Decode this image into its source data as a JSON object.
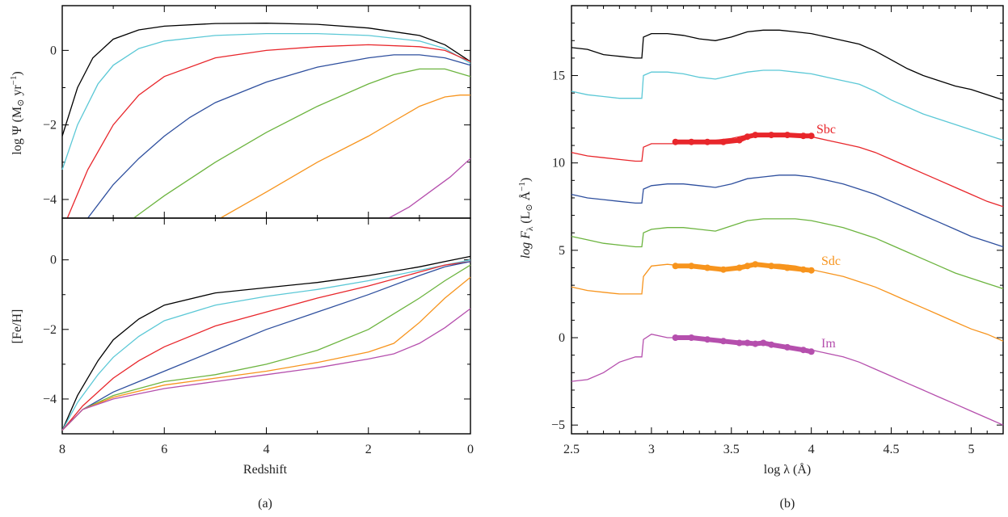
{
  "panel_a": {
    "caption": "(a)",
    "top_ylabel_prefix": "log Ψ (M",
    "top_ylabel_suffix": " yr",
    "top_ylabel_sup": "−1",
    "top_ylabel_close": ")",
    "bottom_ylabel": "[Fe/H]",
    "xlabel": "Redshift",
    "x_ticks": [
      8,
      6,
      4,
      2,
      0
    ],
    "top_y_ticks": [
      0,
      -2,
      -4
    ],
    "bottom_y_ticks": [
      0,
      -2,
      -4
    ]
  },
  "panel_b": {
    "caption": "(b)",
    "ylabel_main": "log F",
    "ylabel_sub": "λ",
    "ylabel_unit_open": " (L",
    "ylabel_unit_mid": " Å",
    "ylabel_unit_sup": "−1",
    "ylabel_unit_close": ")",
    "xlabel": "log λ (Å)",
    "x_ticks": [
      "2.5",
      "3",
      "3.5",
      "4",
      "4.5",
      "5"
    ],
    "y_ticks": [
      "15",
      "10",
      "5",
      "0",
      "−5"
    ],
    "labels": [
      {
        "text": "Sbc",
        "color": "#e8262b"
      },
      {
        "text": "Sdc",
        "color": "#f7941d"
      },
      {
        "text": "Im",
        "color": "#b54fad"
      }
    ]
  },
  "colors": [
    "#000000",
    "#5bc8d6",
    "#e8262b",
    "#2e4f9e",
    "#6cb43f",
    "#f7941d",
    "#b54fad"
  ],
  "chart_data": [
    {
      "type": "line",
      "panel": "a-top",
      "xlabel": "Redshift",
      "ylabel": "log Ψ (M⊙ yr−1)",
      "xlim": [
        8,
        0
      ],
      "ylim": [
        -4.5,
        1.2
      ],
      "series": [
        {
          "x": [
            8.0,
            7.7,
            7.4,
            7.0,
            6.5,
            6.0,
            5.0,
            4.0,
            3.0,
            2.0,
            1.0,
            0.5,
            0.0
          ],
          "y": [
            -2.3,
            -1.0,
            -0.2,
            0.3,
            0.55,
            0.65,
            0.72,
            0.73,
            0.7,
            0.6,
            0.4,
            0.15,
            -0.3
          ]
        },
        {
          "x": [
            8.0,
            7.7,
            7.3,
            7.0,
            6.5,
            6.0,
            5.0,
            4.0,
            3.0,
            2.0,
            1.0,
            0.5,
            0.0
          ],
          "y": [
            -3.2,
            -2.0,
            -0.9,
            -0.4,
            0.05,
            0.25,
            0.4,
            0.45,
            0.45,
            0.4,
            0.25,
            0.05,
            -0.35
          ]
        },
        {
          "x": [
            7.9,
            7.5,
            7.0,
            6.5,
            6.0,
            5.0,
            4.0,
            3.0,
            2.0,
            1.0,
            0.5,
            0.0
          ],
          "y": [
            -4.5,
            -3.2,
            -2.0,
            -1.2,
            -0.7,
            -0.2,
            0.0,
            0.1,
            0.15,
            0.1,
            0.0,
            -0.3
          ]
        },
        {
          "x": [
            7.5,
            7.0,
            6.5,
            6.0,
            5.5,
            5.0,
            4.0,
            3.0,
            2.0,
            1.5,
            1.0,
            0.5,
            0.0
          ],
          "y": [
            -4.5,
            -3.6,
            -2.9,
            -2.3,
            -1.8,
            -1.4,
            -0.85,
            -0.45,
            -0.2,
            -0.12,
            -0.12,
            -0.2,
            -0.4
          ]
        },
        {
          "x": [
            6.6,
            6.0,
            5.0,
            4.0,
            3.0,
            2.0,
            1.5,
            1.0,
            0.5,
            0.0
          ],
          "y": [
            -4.5,
            -3.9,
            -3.0,
            -2.2,
            -1.5,
            -0.9,
            -0.65,
            -0.5,
            -0.5,
            -0.7
          ]
        },
        {
          "x": [
            4.9,
            4.0,
            3.0,
            2.0,
            1.5,
            1.0,
            0.5,
            0.2,
            0.0
          ],
          "y": [
            -4.5,
            -3.8,
            -3.0,
            -2.3,
            -1.9,
            -1.5,
            -1.25,
            -1.2,
            -1.2
          ]
        },
        {
          "x": [
            1.6,
            1.2,
            0.8,
            0.4,
            0.0
          ],
          "y": [
            -4.5,
            -4.2,
            -3.8,
            -3.4,
            -2.9
          ]
        }
      ]
    },
    {
      "type": "line",
      "panel": "a-bottom",
      "xlabel": "Redshift",
      "ylabel": "[Fe/H]",
      "xlim": [
        8,
        0
      ],
      "ylim": [
        -5.0,
        1.2
      ],
      "series": [
        {
          "x": [
            8.0,
            7.7,
            7.3,
            7.0,
            6.5,
            6.0,
            5.0,
            4.0,
            3.0,
            2.0,
            1.0,
            0.5,
            0.0
          ],
          "y": [
            -4.9,
            -3.9,
            -2.9,
            -2.3,
            -1.7,
            -1.3,
            -0.95,
            -0.8,
            -0.65,
            -0.45,
            -0.2,
            -0.05,
            0.1
          ]
        },
        {
          "x": [
            8.0,
            7.7,
            7.3,
            7.0,
            6.5,
            6.0,
            5.0,
            4.0,
            3.0,
            2.0,
            1.0,
            0.5,
            0.0
          ],
          "y": [
            -4.9,
            -4.1,
            -3.3,
            -2.8,
            -2.2,
            -1.75,
            -1.3,
            -1.05,
            -0.85,
            -0.6,
            -0.3,
            -0.15,
            0.0
          ]
        },
        {
          "x": [
            8.0,
            7.6,
            7.0,
            6.5,
            6.0,
            5.0,
            4.0,
            3.0,
            2.0,
            1.0,
            0.5,
            0.0
          ],
          "y": [
            -4.9,
            -4.2,
            -3.4,
            -2.9,
            -2.5,
            -1.9,
            -1.5,
            -1.1,
            -0.75,
            -0.35,
            -0.15,
            -0.05
          ]
        },
        {
          "x": [
            8.0,
            7.6,
            7.0,
            6.5,
            6.0,
            5.0,
            4.0,
            3.0,
            2.0,
            1.0,
            0.5,
            0.0
          ],
          "y": [
            -4.9,
            -4.3,
            -3.8,
            -3.5,
            -3.2,
            -2.6,
            -2.0,
            -1.5,
            -1.0,
            -0.45,
            -0.2,
            -0.05
          ]
        },
        {
          "x": [
            8.0,
            7.6,
            7.0,
            6.0,
            5.0,
            4.0,
            3.0,
            2.0,
            1.0,
            0.5,
            0.0
          ],
          "y": [
            -4.9,
            -4.3,
            -3.9,
            -3.5,
            -3.3,
            -3.0,
            -2.6,
            -2.0,
            -1.1,
            -0.6,
            -0.15
          ]
        },
        {
          "x": [
            8.0,
            7.6,
            7.0,
            6.0,
            5.0,
            4.0,
            3.0,
            2.0,
            1.5,
            1.0,
            0.5,
            0.0
          ],
          "y": [
            -4.9,
            -4.3,
            -3.95,
            -3.6,
            -3.4,
            -3.2,
            -2.95,
            -2.65,
            -2.4,
            -1.8,
            -1.1,
            -0.5
          ]
        },
        {
          "x": [
            8.0,
            7.6,
            7.0,
            6.0,
            5.0,
            4.0,
            3.0,
            2.0,
            1.5,
            1.0,
            0.5,
            0.0
          ],
          "y": [
            -4.9,
            -4.3,
            -4.0,
            -3.7,
            -3.5,
            -3.3,
            -3.1,
            -2.85,
            -2.7,
            -2.4,
            -1.95,
            -1.4
          ]
        }
      ]
    },
    {
      "type": "line",
      "panel": "b",
      "xlabel": "log λ (Å)",
      "ylabel": "log Fλ (L⊙ Å−1)",
      "xlim": [
        2.5,
        5.2
      ],
      "ylim": [
        -5.5,
        19.0
      ],
      "template_x": [
        2.5,
        2.6,
        2.7,
        2.8,
        2.9,
        2.94,
        2.95,
        3.0,
        3.1,
        3.2,
        3.3,
        3.4,
        3.5,
        3.6,
        3.7,
        3.8,
        3.9,
        4.0,
        4.1,
        4.2,
        4.3,
        4.4,
        4.5,
        4.6,
        4.7,
        4.8,
        4.9,
        5.0,
        5.1,
        5.2
      ],
      "series": [
        {
          "offset": 16.5,
          "y": [
            0.1,
            0.0,
            -0.3,
            -0.4,
            -0.5,
            -0.5,
            0.7,
            0.9,
            0.9,
            0.8,
            0.6,
            0.5,
            0.7,
            1.0,
            1.1,
            1.1,
            1.0,
            0.9,
            0.7,
            0.5,
            0.3,
            -0.1,
            -0.6,
            -1.1,
            -1.5,
            -1.8,
            -2.1,
            -2.3,
            -2.6,
            -2.9
          ]
        },
        {
          "offset": 14.5,
          "y": [
            -0.4,
            -0.6,
            -0.7,
            -0.8,
            -0.8,
            -0.8,
            0.5,
            0.7,
            0.7,
            0.6,
            0.4,
            0.3,
            0.5,
            0.7,
            0.8,
            0.8,
            0.7,
            0.6,
            0.4,
            0.2,
            0.0,
            -0.4,
            -0.9,
            -1.3,
            -1.7,
            -2.0,
            -2.3,
            -2.6,
            -2.9,
            -3.2
          ]
        },
        {
          "offset": 10.5,
          "y": [
            0.1,
            -0.1,
            -0.2,
            -0.3,
            -0.4,
            -0.4,
            0.4,
            0.6,
            0.6,
            0.6,
            0.7,
            0.8,
            0.9,
            1.1,
            1.1,
            1.1,
            1.1,
            1.0,
            0.8,
            0.6,
            0.4,
            0.1,
            -0.3,
            -0.7,
            -1.1,
            -1.5,
            -1.9,
            -2.3,
            -2.7,
            -3.0
          ]
        },
        {
          "offset": 8.2,
          "y": [
            0.0,
            -0.2,
            -0.3,
            -0.4,
            -0.5,
            -0.5,
            0.3,
            0.5,
            0.6,
            0.6,
            0.5,
            0.4,
            0.6,
            0.9,
            1.0,
            1.1,
            1.1,
            1.0,
            0.8,
            0.6,
            0.3,
            0.0,
            -0.4,
            -0.8,
            -1.2,
            -1.6,
            -2.0,
            -2.4,
            -2.7,
            -3.0
          ]
        },
        {
          "offset": 5.8,
          "y": [
            0.0,
            -0.2,
            -0.4,
            -0.5,
            -0.6,
            -0.6,
            0.2,
            0.4,
            0.5,
            0.5,
            0.4,
            0.3,
            0.6,
            0.9,
            1.0,
            1.0,
            1.0,
            0.9,
            0.7,
            0.5,
            0.2,
            -0.1,
            -0.5,
            -0.9,
            -1.3,
            -1.7,
            -2.1,
            -2.4,
            -2.7,
            -3.0
          ]
        },
        {
          "offset": 2.9,
          "y": [
            0.0,
            -0.2,
            -0.3,
            -0.4,
            -0.4,
            -0.4,
            0.6,
            1.2,
            1.3,
            1.2,
            1.2,
            1.1,
            1.1,
            1.2,
            1.3,
            1.3,
            1.2,
            1.0,
            0.8,
            0.6,
            0.3,
            0.0,
            -0.4,
            -0.8,
            -1.2,
            -1.6,
            -2.0,
            -2.4,
            -2.7,
            -3.1
          ]
        },
        {
          "offset": 0.0,
          "y": [
            -2.5,
            -2.4,
            -2.0,
            -1.4,
            -1.1,
            -1.1,
            -0.1,
            0.2,
            0.0,
            0.0,
            -0.1,
            -0.2,
            -0.3,
            -0.3,
            -0.4,
            -0.5,
            -0.6,
            -0.7,
            -0.9,
            -1.1,
            -1.4,
            -1.8,
            -2.2,
            -2.6,
            -3.0,
            -3.4,
            -3.8,
            -4.2,
            -4.6,
            -5.0
          ]
        }
      ],
      "observed": [
        {
          "color_index": 2,
          "x": [
            3.15,
            3.25,
            3.35,
            3.45,
            3.55,
            3.6,
            3.65,
            3.75,
            3.85,
            3.95,
            4.0
          ],
          "y": [
            11.2,
            11.2,
            11.2,
            11.2,
            11.3,
            11.5,
            11.6,
            11.6,
            11.6,
            11.55,
            11.55
          ]
        },
        {
          "color_index": 5,
          "x": [
            3.15,
            3.25,
            3.35,
            3.45,
            3.55,
            3.6,
            3.65,
            3.75,
            3.85,
            3.95,
            4.0
          ],
          "y": [
            4.1,
            4.1,
            4.0,
            3.9,
            4.0,
            4.1,
            4.2,
            4.1,
            4.0,
            3.9,
            3.85
          ]
        },
        {
          "color_index": 6,
          "x": [
            3.15,
            3.25,
            3.35,
            3.45,
            3.55,
            3.6,
            3.65,
            3.7,
            3.75,
            3.85,
            3.95,
            4.0
          ],
          "y": [
            0.0,
            0.0,
            -0.1,
            -0.2,
            -0.3,
            -0.3,
            -0.35,
            -0.3,
            -0.4,
            -0.55,
            -0.7,
            -0.8
          ]
        }
      ]
    }
  ]
}
